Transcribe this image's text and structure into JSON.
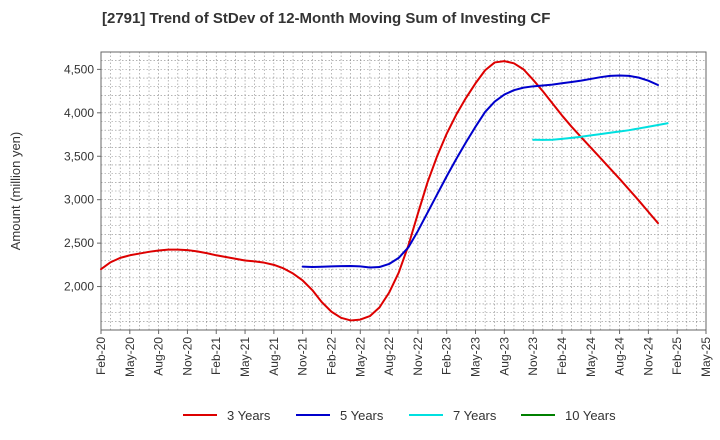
{
  "title": "[2791]  Trend of StDev of 12-Month Moving Sum of Investing CF",
  "chart_data": {
    "type": "line",
    "ylabel": "Amount (million yen)",
    "xlabel": "",
    "ylim": [
      1500,
      4700
    ],
    "yticks": [
      2000,
      2500,
      3000,
      3500,
      4000,
      4500
    ],
    "ytick_labels": [
      "2,000",
      "2,500",
      "3,000",
      "3,500",
      "4,000",
      "4,500"
    ],
    "x_categories": [
      "Feb-20",
      "May-20",
      "Aug-20",
      "Nov-20",
      "Feb-21",
      "May-21",
      "Aug-21",
      "Nov-21",
      "Feb-22",
      "May-22",
      "Aug-22",
      "Nov-22",
      "Feb-23",
      "May-23",
      "Aug-23",
      "Nov-23",
      "Feb-24",
      "May-24",
      "Aug-24",
      "Nov-24",
      "Feb-25",
      "May-25"
    ],
    "grid": true,
    "legend_position": "bottom",
    "series": [
      {
        "name": "3 Years",
        "color": "#dd0000",
        "start_index": 0,
        "values": [
          2200,
          2280,
          2330,
          2360,
          2380,
          2400,
          2415,
          2425,
          2425,
          2420,
          2405,
          2385,
          2360,
          2340,
          2320,
          2300,
          2290,
          2275,
          2250,
          2210,
          2150,
          2070,
          1960,
          1820,
          1710,
          1640,
          1610,
          1620,
          1660,
          1760,
          1930,
          2160,
          2470,
          2840,
          3200,
          3500,
          3760,
          3980,
          4170,
          4340,
          4490,
          4580,
          4595,
          4570,
          4500,
          4380,
          4250,
          4110,
          3970,
          3840,
          3720,
          3600,
          3480,
          3360,
          3240,
          3115,
          2990,
          2860,
          2730
        ]
      },
      {
        "name": "5 Years",
        "color": "#0000cc",
        "start_index": 21,
        "values": [
          2230,
          2225,
          2228,
          2232,
          2235,
          2236,
          2232,
          2220,
          2225,
          2260,
          2330,
          2450,
          2640,
          2850,
          3060,
          3270,
          3470,
          3660,
          3840,
          4010,
          4130,
          4210,
          4260,
          4290,
          4305,
          4315,
          4325,
          4340,
          4355,
          4370,
          4390,
          4410,
          4425,
          4430,
          4425,
          4405,
          4370,
          4320
        ]
      },
      {
        "name": "7 Years",
        "color": "#00e0e0",
        "start_index": 45,
        "values": [
          3690,
          3688,
          3690,
          3700,
          3712,
          3725,
          3740,
          3755,
          3770,
          3785,
          3800,
          3820,
          3840,
          3860,
          3880
        ]
      },
      {
        "name": "10 Years",
        "color": "#008000",
        "start_index": 0,
        "values": []
      }
    ]
  }
}
